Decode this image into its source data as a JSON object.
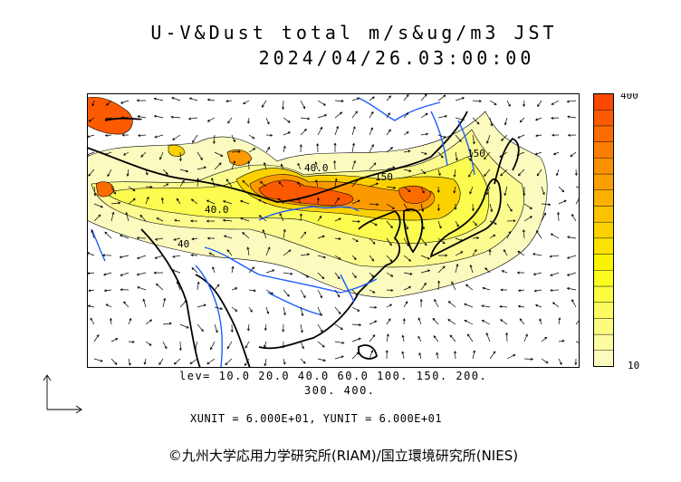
{
  "title": {
    "line1": "U-V&Dust total m/s&ug/m3 JST",
    "line2": "2024/04/26.03:00:00"
  },
  "colorbar": {
    "max_label": "400",
    "min_label": "10",
    "colors": [
      "#fbfbc0",
      "#fbfba0",
      "#fbfb80",
      "#fbfb60",
      "#fbfb40",
      "#fbfb20",
      "#fbf200",
      "#fbe200",
      "#fbd200",
      "#fbc200",
      "#fbb000",
      "#fba000",
      "#fb9000",
      "#fb7e00",
      "#fb6c00",
      "#fb5a00",
      "#fb4800"
    ]
  },
  "contour_labels": [
    "40.0",
    "40.0",
    "40",
    "150",
    "150"
  ],
  "legend": {
    "lev_line1": "lev= 10.0 20.0 40.0 60.0 100. 150. 200.",
    "lev_line2": "300. 400.",
    "unit_line": "XUNIT = 6.000E+01, YUNIT = 6.000E+01"
  },
  "footer": "©九州大学応用力学研究所(RIAM)/国立環境研究所(NIES)",
  "colors": {
    "coast": "#000000",
    "river": "#1c5cff",
    "frame": "#000000"
  }
}
